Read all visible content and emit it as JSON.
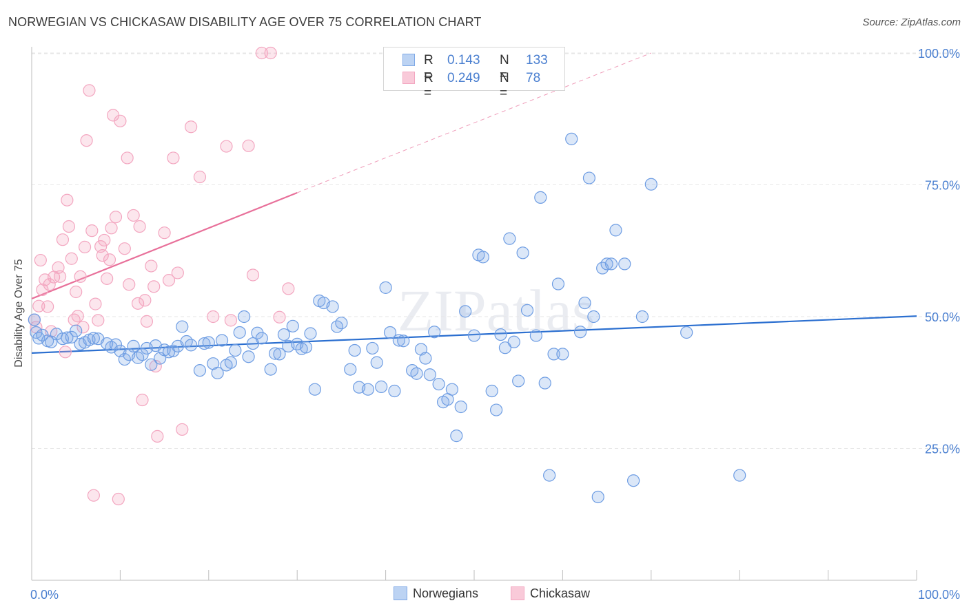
{
  "title": "NORWEGIAN VS CHICKASAW DISABILITY AGE OVER 75 CORRELATION CHART",
  "source": "Source: ZipAtlas.com",
  "watermark": "ZIPatlas",
  "legend": {
    "rows": [
      {
        "r_label": "R =",
        "r_value": "0.143",
        "n_label": "N =",
        "n_value": "133"
      },
      {
        "r_label": "R =",
        "r_value": "0.249",
        "n_label": "N =",
        "n_value": "78"
      }
    ]
  },
  "chart_data": {
    "type": "scatter",
    "title": "NORWEGIAN VS CHICKASAW DISABILITY AGE OVER 75 CORRELATION CHART",
    "xlabel": "",
    "ylabel": "Disability Age Over 75",
    "xlim": [
      0,
      100
    ],
    "ylim": [
      0,
      105
    ],
    "x_tick_labels": [
      "0.0%",
      "100.0%"
    ],
    "y_ticks": [
      25,
      50,
      75,
      100
    ],
    "y_tick_labels": [
      "25.0%",
      "50.0%",
      "75.0%",
      "100.0%"
    ],
    "grid": true,
    "legend_position": "top-center",
    "colors": {
      "Norwegians": "#7ea8e6",
      "Chickasaw": "#f3a6c0",
      "Norwegians_line": "#2b6fd0",
      "Chickasaw_line": "#e8709a"
    },
    "series": [
      {
        "name": "Norwegians",
        "trend": {
          "x0": 0,
          "y0": 43.1,
          "x1": 100,
          "y1": 50.1
        },
        "points": [
          [
            0.3,
            49.4
          ],
          [
            0.5,
            47.0
          ],
          [
            0.8,
            45.9
          ],
          [
            1.2,
            46.5
          ],
          [
            1.8,
            45.4
          ],
          [
            2.2,
            45.2
          ],
          [
            2.8,
            46.7
          ],
          [
            3.5,
            45.8
          ],
          [
            4,
            46.0
          ],
          [
            4.5,
            46.1
          ],
          [
            5,
            47.3
          ],
          [
            5.5,
            44.8
          ],
          [
            6,
            45.1
          ],
          [
            6.5,
            45.6
          ],
          [
            7,
            45.9
          ],
          [
            7.5,
            45.8
          ],
          [
            8.5,
            44.9
          ],
          [
            9,
            44.2
          ],
          [
            9.5,
            44.7
          ],
          [
            10,
            43.5
          ],
          [
            10.5,
            41.9
          ],
          [
            11,
            42.8
          ],
          [
            11.5,
            44.4
          ],
          [
            12,
            42.2
          ],
          [
            12.5,
            42.8
          ],
          [
            13,
            44.0
          ],
          [
            13.5,
            40.9
          ],
          [
            14,
            44.5
          ],
          [
            14.5,
            42.1
          ],
          [
            15,
            43.7
          ],
          [
            15.5,
            43.3
          ],
          [
            16,
            43.5
          ],
          [
            16.5,
            44.4
          ],
          [
            17,
            48.1
          ],
          [
            17.5,
            45.3
          ],
          [
            18,
            44.6
          ],
          [
            19,
            39.8
          ],
          [
            19.5,
            44.9
          ],
          [
            20,
            45.1
          ],
          [
            20.5,
            41.1
          ],
          [
            21,
            39.3
          ],
          [
            21.5,
            45.5
          ],
          [
            22,
            40.8
          ],
          [
            22.5,
            41.3
          ],
          [
            23,
            43.6
          ],
          [
            23.5,
            47.0
          ],
          [
            24,
            50.0
          ],
          [
            24.5,
            42.4
          ],
          [
            25,
            44.9
          ],
          [
            25.5,
            46.9
          ],
          [
            26,
            45.9
          ],
          [
            27,
            40.0
          ],
          [
            27.5,
            43.0
          ],
          [
            28,
            42.9
          ],
          [
            28.5,
            46.6
          ],
          [
            29,
            44.4
          ],
          [
            29.5,
            48.2
          ],
          [
            30,
            44.8
          ],
          [
            30.5,
            43.9
          ],
          [
            31,
            44.2
          ],
          [
            31.5,
            46.8
          ],
          [
            32,
            36.2
          ],
          [
            32.5,
            53.0
          ],
          [
            33,
            52.6
          ],
          [
            34,
            51.9
          ],
          [
            34.5,
            48.1
          ],
          [
            35,
            48.8
          ],
          [
            36,
            40.0
          ],
          [
            36.5,
            43.6
          ],
          [
            37,
            36.6
          ],
          [
            38,
            36.2
          ],
          [
            38.5,
            44.0
          ],
          [
            39,
            41.3
          ],
          [
            39.5,
            36.7
          ],
          [
            40,
            55.5
          ],
          [
            40.5,
            47.0
          ],
          [
            41,
            35.9
          ],
          [
            41.5,
            45.5
          ],
          [
            42,
            45.4
          ],
          [
            43,
            39.8
          ],
          [
            43.5,
            39.2
          ],
          [
            44,
            43.8
          ],
          [
            44.5,
            42.1
          ],
          [
            45,
            39.0
          ],
          [
            45.5,
            47.1
          ],
          [
            46,
            37.2
          ],
          [
            46.5,
            33.8
          ],
          [
            47,
            34.3
          ],
          [
            47.5,
            36.2
          ],
          [
            48,
            27.4
          ],
          [
            48.5,
            32.9
          ],
          [
            49,
            51.0
          ],
          [
            50,
            46.4
          ],
          [
            50.5,
            61.7
          ],
          [
            51,
            61.3
          ],
          [
            52,
            35.9
          ],
          [
            52.5,
            32.3
          ],
          [
            53,
            46.6
          ],
          [
            53.5,
            44.1
          ],
          [
            54,
            64.8
          ],
          [
            54.5,
            45.2
          ],
          [
            55,
            37.8
          ],
          [
            55.5,
            62.1
          ],
          [
            56,
            51.2
          ],
          [
            57,
            46.4
          ],
          [
            57.5,
            72.6
          ],
          [
            58,
            37.4
          ],
          [
            58.5,
            19.9
          ],
          [
            59,
            42.9
          ],
          [
            59.5,
            56.2
          ],
          [
            60,
            42.9
          ],
          [
            61,
            83.7
          ],
          [
            62,
            47.1
          ],
          [
            62.5,
            52.6
          ],
          [
            63,
            76.3
          ],
          [
            63.5,
            50.0
          ],
          [
            64,
            15.8
          ],
          [
            64.5,
            59.2
          ],
          [
            65,
            60.0
          ],
          [
            65.5,
            60.0
          ],
          [
            66,
            66.4
          ],
          [
            67,
            60.0
          ],
          [
            68,
            18.9
          ],
          [
            69,
            50.0
          ],
          [
            70,
            75.1
          ],
          [
            74,
            47.0
          ],
          [
            80,
            19.9
          ]
        ]
      },
      {
        "name": "Chickasaw",
        "trend": {
          "x0": 0,
          "y0": 53.4,
          "x1": 30,
          "y1": 73.5,
          "x1_ext": 70,
          "y1_ext": 100
        },
        "points": [
          [
            0.3,
            49.4
          ],
          [
            0.5,
            48.0
          ],
          [
            0.8,
            52.0
          ],
          [
            1,
            60.7
          ],
          [
            1.2,
            55.1
          ],
          [
            1.5,
            57.0
          ],
          [
            1.8,
            51.9
          ],
          [
            2,
            56.1
          ],
          [
            2.2,
            47.2
          ],
          [
            2.5,
            57.5
          ],
          [
            3,
            59.3
          ],
          [
            3.2,
            57.6
          ],
          [
            3.5,
            64.6
          ],
          [
            3.8,
            43.3
          ],
          [
            4,
            72.1
          ],
          [
            4.2,
            67.1
          ],
          [
            4.5,
            61.0
          ],
          [
            4.8,
            49.4
          ],
          [
            5,
            54.7
          ],
          [
            5.2,
            50.1
          ],
          [
            5.5,
            57.6
          ],
          [
            5.8,
            48.0
          ],
          [
            6,
            63.2
          ],
          [
            6.2,
            83.4
          ],
          [
            6.5,
            92.9
          ],
          [
            6.8,
            66.3
          ],
          [
            7,
            16.1
          ],
          [
            7.2,
            52.4
          ],
          [
            7.5,
            49.3
          ],
          [
            7.8,
            63.3
          ],
          [
            8,
            61.6
          ],
          [
            8.2,
            64.5
          ],
          [
            8.5,
            57.2
          ],
          [
            8.8,
            60.8
          ],
          [
            9,
            66.8
          ],
          [
            9.2,
            88.2
          ],
          [
            9.5,
            68.9
          ],
          [
            9.8,
            15.4
          ],
          [
            10,
            87.1
          ],
          [
            10.5,
            62.9
          ],
          [
            10.8,
            80.1
          ],
          [
            11,
            56.1
          ],
          [
            11.5,
            69.2
          ],
          [
            12,
            52.5
          ],
          [
            12.2,
            67.1
          ],
          [
            12.5,
            34.2
          ],
          [
            12.8,
            53.1
          ],
          [
            13,
            49.1
          ],
          [
            13.5,
            59.6
          ],
          [
            13.8,
            55.7
          ],
          [
            14,
            40.6
          ],
          [
            14.2,
            27.3
          ],
          [
            15,
            65.9
          ],
          [
            15.5,
            56.9
          ],
          [
            16,
            80.1
          ],
          [
            16.5,
            58.3
          ],
          [
            17,
            28.6
          ],
          [
            18,
            86.0
          ],
          [
            19,
            76.5
          ],
          [
            20.5,
            50.0
          ],
          [
            22,
            82.3
          ],
          [
            22.5,
            49.3
          ],
          [
            24.5,
            82.4
          ],
          [
            25,
            57.9
          ],
          [
            26,
            100.0
          ],
          [
            27,
            100.0
          ],
          [
            28,
            49.9
          ],
          [
            29,
            55.3
          ]
        ]
      }
    ]
  },
  "axis_labels": {
    "y": "Disability Age Over 75",
    "x_left": "0.0%",
    "x_right": "100.0%",
    "y_ticks": [
      "25.0%",
      "50.0%",
      "75.0%",
      "100.0%"
    ]
  },
  "bottom_legend": {
    "series1": "Norwegians",
    "series2": "Chickasaw"
  }
}
